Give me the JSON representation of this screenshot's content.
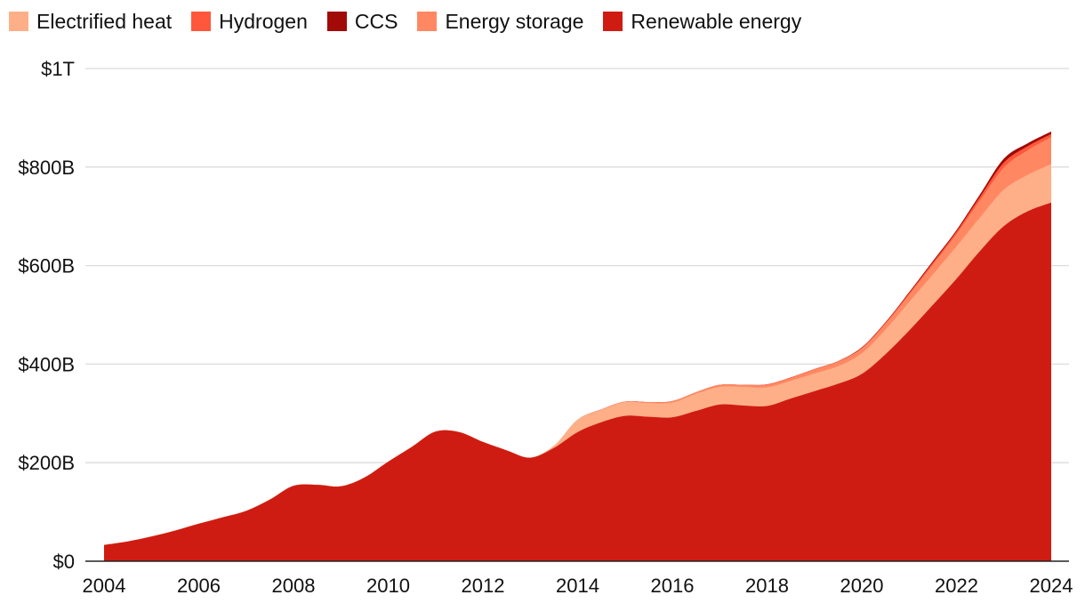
{
  "legend": [
    {
      "label": "Electrified heat",
      "color": "#FFAF87"
    },
    {
      "label": "Hydrogen",
      "color": "#FF573B"
    },
    {
      "label": "CCS",
      "color": "#A10A06"
    },
    {
      "label": "Energy storage",
      "color": "#FF8863"
    },
    {
      "label": "Renewable energy",
      "color": "#CF1C12"
    }
  ],
  "chart_data": {
    "type": "area",
    "stacked": true,
    "x": [
      2004,
      2004.5,
      2005,
      2005.5,
      2006,
      2006.5,
      2007,
      2007.5,
      2008,
      2008.5,
      2009,
      2009.5,
      2010,
      2010.5,
      2011,
      2011.5,
      2012,
      2012.5,
      2013,
      2013.5,
      2014,
      2014.5,
      2015,
      2015.5,
      2016,
      2016.5,
      2017,
      2017.5,
      2018,
      2018.5,
      2019,
      2019.5,
      2020,
      2020.5,
      2021,
      2021.5,
      2022,
      2022.5,
      2023,
      2023.5,
      2024
    ],
    "series": [
      {
        "name": "Renewable energy",
        "color": "#CF1C12",
        "values": [
          33,
          40,
          50,
          62,
          76,
          89,
          102,
          125,
          153,
          155,
          152,
          170,
          202,
          232,
          263,
          262,
          242,
          225,
          210,
          230,
          262,
          282,
          295,
          293,
          292,
          305,
          318,
          316,
          315,
          330,
          345,
          360,
          380,
          420,
          468,
          520,
          573,
          630,
          680,
          710,
          728
        ]
      },
      {
        "name": "Electrified heat",
        "color": "#FFAF87",
        "values": [
          0,
          0,
          0,
          0,
          0,
          0,
          0,
          0,
          0,
          0,
          0,
          0,
          0,
          0,
          0,
          0,
          0,
          0,
          0,
          4,
          25,
          25,
          28,
          28,
          30,
          35,
          36,
          38,
          38,
          36,
          36,
          36,
          42,
          50,
          58,
          62,
          66,
          68,
          74,
          74,
          78
        ]
      },
      {
        "name": "Energy storage",
        "color": "#FF8863",
        "values": [
          0,
          0,
          0,
          0,
          0,
          0,
          0,
          0,
          0,
          0,
          0,
          0,
          0,
          0,
          0,
          0,
          0,
          0,
          0,
          0,
          0,
          1,
          1,
          2,
          3,
          3,
          4,
          4,
          5,
          6,
          8,
          9,
          10,
          12,
          15,
          20,
          25,
          35,
          45,
          50,
          55
        ]
      },
      {
        "name": "Hydrogen",
        "color": "#FF573B",
        "values": [
          0,
          0,
          0,
          0,
          0,
          0,
          0,
          0,
          0,
          0,
          0,
          0,
          0,
          0,
          0,
          0,
          0,
          0,
          0,
          0,
          0,
          0,
          0,
          0,
          0,
          0,
          0,
          0,
          1,
          1,
          1,
          1,
          1,
          2,
          3,
          4,
          5,
          7,
          10,
          8,
          6
        ]
      },
      {
        "name": "CCS",
        "color": "#A10A06",
        "values": [
          0,
          0,
          0,
          0,
          0,
          0,
          0,
          0,
          0,
          0,
          0,
          0,
          0,
          0,
          0,
          0,
          0,
          0,
          0,
          0,
          0,
          0,
          0,
          0,
          0,
          0,
          0,
          0,
          0,
          0,
          0,
          0,
          1,
          1,
          2,
          3,
          3,
          5,
          8,
          6,
          5
        ]
      }
    ],
    "x_ticks": [
      "2004",
      "2006",
      "2008",
      "2010",
      "2012",
      "2014",
      "2016",
      "2018",
      "2020",
      "2022",
      "2024"
    ],
    "x_tick_values": [
      2004,
      2006,
      2008,
      2010,
      2012,
      2014,
      2016,
      2018,
      2020,
      2022,
      2024
    ],
    "y_ticks": [
      "$0",
      "$200B",
      "$400B",
      "$600B",
      "$800B",
      "$1T"
    ],
    "y_tick_values": [
      0,
      200,
      400,
      600,
      800,
      1000
    ],
    "xlim": [
      2004,
      2024
    ],
    "ylim": [
      0,
      1000
    ],
    "grid": true,
    "legend_position": "top-left"
  }
}
